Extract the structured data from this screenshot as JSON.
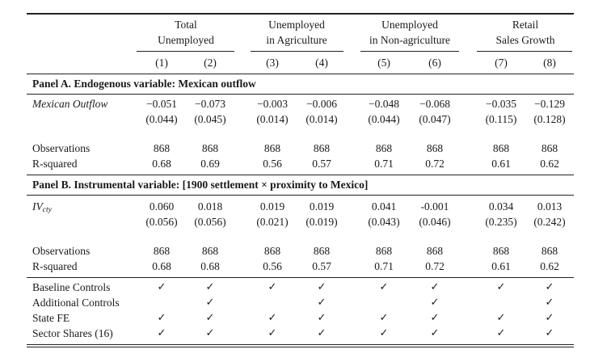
{
  "header": {
    "groups": [
      {
        "line1": "Total",
        "line2": "Unemployed"
      },
      {
        "line1": "Unemployed",
        "line2": "in Agriculture"
      },
      {
        "line1": "Unemployed",
        "line2": "in Non-agriculture"
      },
      {
        "line1": "Retail",
        "line2": "Sales Growth"
      }
    ],
    "columns": [
      "(1)",
      "(2)",
      "(3)",
      "(4)",
      "(5)",
      "(6)",
      "(7)",
      "(8)"
    ]
  },
  "panelA": {
    "title": "Panel A. Endogenous variable: Mexican outflow",
    "var_label": "Mexican Outflow",
    "coef": [
      "−0.051",
      "−0.073",
      "−0.003",
      "−0.006",
      "−0.048",
      "−0.068",
      "−0.035",
      "−0.129"
    ],
    "se": [
      "(0.044)",
      "(0.045)",
      "(0.014)",
      "(0.014)",
      "(0.044)",
      "(0.047)",
      "(0.115)",
      "(0.128)"
    ],
    "obs_label": "Observations",
    "obs": [
      "868",
      "868",
      "868",
      "868",
      "868",
      "868",
      "868",
      "868"
    ],
    "r2_label": "R-squared",
    "r2": [
      "0.68",
      "0.69",
      "0.56",
      "0.57",
      "0.71",
      "0.72",
      "0.61",
      "0.62"
    ]
  },
  "panelB": {
    "title": "Panel B. Instrumental variable: [1900 settlement × proximity to Mexico]",
    "var_label": "IV",
    "var_sub": "cty",
    "coef": [
      "0.060",
      "0.018",
      "0.019",
      "0.019",
      "0.041",
      "-0.001",
      "0.034",
      "0.013"
    ],
    "se": [
      "(0.056)",
      "(0.056)",
      "(0.021)",
      "(0.019)",
      "(0.043)",
      "(0.046)",
      "(0.235)",
      "(0.242)"
    ],
    "obs_label": "Observations",
    "obs": [
      "868",
      "868",
      "868",
      "868",
      "868",
      "868",
      "868",
      "868"
    ],
    "r2_label": "R-squared",
    "r2": [
      "0.68",
      "0.68",
      "0.56",
      "0.57",
      "0.71",
      "0.72",
      "0.61",
      "0.62"
    ]
  },
  "controls": {
    "check_mark": "✓",
    "rows": [
      {
        "label": "Baseline Controls",
        "checks": [
          true,
          true,
          true,
          true,
          true,
          true,
          true,
          true
        ]
      },
      {
        "label": "Additional Controls",
        "checks": [
          false,
          true,
          false,
          true,
          false,
          true,
          false,
          true
        ]
      },
      {
        "label": "State FE",
        "checks": [
          true,
          true,
          true,
          true,
          true,
          true,
          true,
          true
        ]
      },
      {
        "label": "Sector Shares (16)",
        "checks": [
          true,
          true,
          true,
          true,
          true,
          true,
          true,
          true
        ]
      }
    ]
  }
}
